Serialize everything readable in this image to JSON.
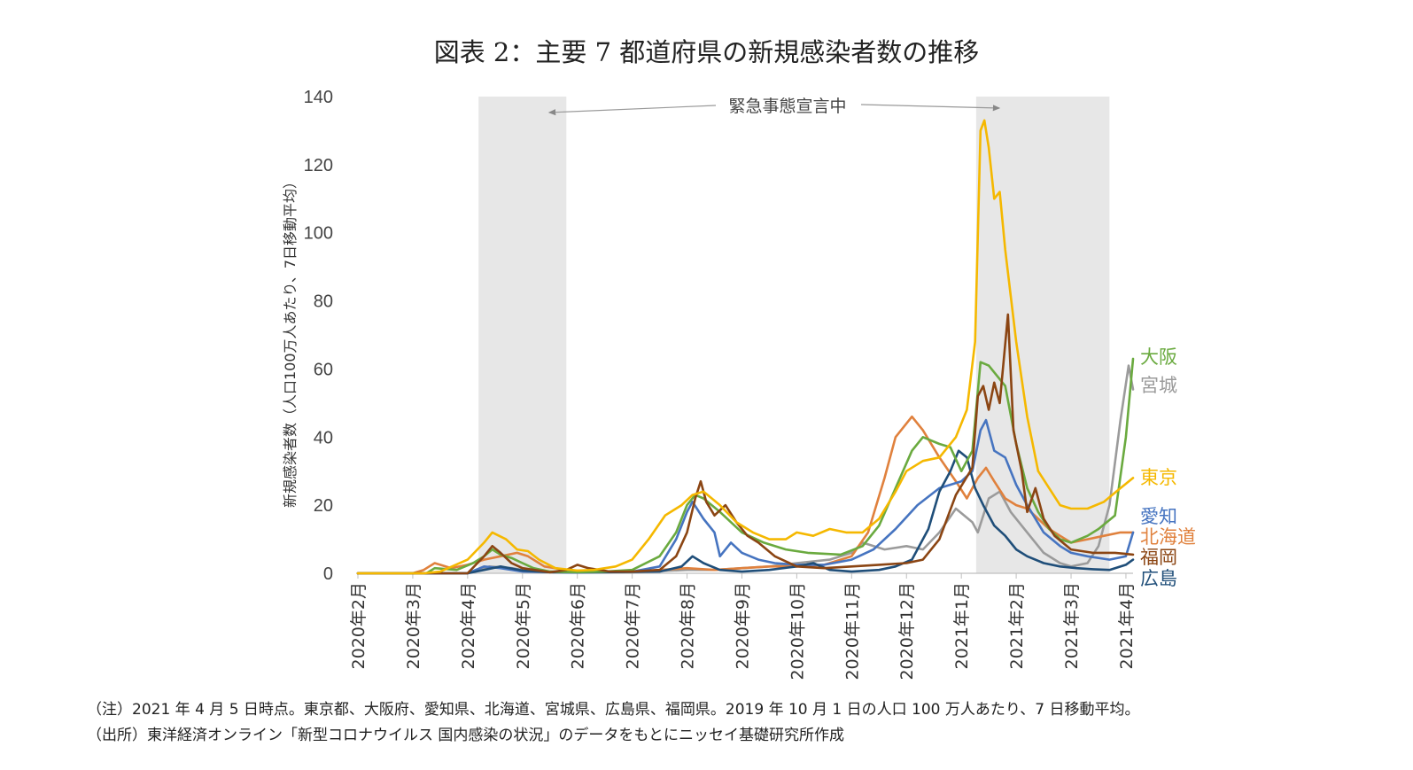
{
  "chart_data": {
    "type": "line",
    "title": "図表 2：主要 7 都道府県の新規感染者数の推移",
    "xlabel": "",
    "ylabel": "新規感染者数（人口100万人あたり、7日移動平均）",
    "ylim": [
      0,
      140
    ],
    "yticks": [
      0,
      20,
      40,
      60,
      80,
      100,
      120,
      140
    ],
    "x_unit": "months since 2020-02-01",
    "xlim": [
      0,
      14.13
    ],
    "categories": [
      "2020年2月",
      "2020年3月",
      "2020年4月",
      "2020年5月",
      "2020年6月",
      "2020年7月",
      "2020年8月",
      "2020年9月",
      "2020年10月",
      "2020年11月",
      "2020年12月",
      "2021年1月",
      "2021年2月",
      "2021年3月",
      "2021年4月"
    ],
    "shaded_periods": [
      {
        "start": 2.2,
        "end": 3.8
      },
      {
        "start": 11.27,
        "end": 13.7
      }
    ],
    "annotation": "緊急事態宣言中",
    "series": [
      {
        "name": "大阪",
        "color": "#6aaa3f",
        "points": [
          [
            0,
            0
          ],
          [
            1.25,
            0
          ],
          [
            1.4,
            1.5
          ],
          [
            1.8,
            1
          ],
          [
            2.1,
            3
          ],
          [
            2.3,
            5
          ],
          [
            2.45,
            7
          ],
          [
            2.6,
            5.5
          ],
          [
            2.8,
            4.5
          ],
          [
            3.0,
            3
          ],
          [
            3.2,
            1.5
          ],
          [
            3.5,
            0.5
          ],
          [
            4.0,
            0.3
          ],
          [
            4.5,
            0.5
          ],
          [
            5.0,
            1
          ],
          [
            5.5,
            5
          ],
          [
            5.8,
            12
          ],
          [
            6.0,
            20
          ],
          [
            6.15,
            23
          ],
          [
            6.3,
            22
          ],
          [
            6.6,
            18
          ],
          [
            7.0,
            12
          ],
          [
            7.4,
            9
          ],
          [
            7.8,
            7
          ],
          [
            8.2,
            6
          ],
          [
            8.8,
            5.5
          ],
          [
            9.2,
            8
          ],
          [
            9.5,
            14
          ],
          [
            9.8,
            25
          ],
          [
            10.1,
            36
          ],
          [
            10.3,
            40
          ],
          [
            10.6,
            38
          ],
          [
            10.8,
            37
          ],
          [
            11.0,
            30
          ],
          [
            11.2,
            36
          ],
          [
            11.35,
            62
          ],
          [
            11.5,
            61
          ],
          [
            11.65,
            58
          ],
          [
            11.8,
            55
          ],
          [
            12.0,
            38
          ],
          [
            12.2,
            25
          ],
          [
            12.4,
            18
          ],
          [
            12.6,
            13
          ],
          [
            12.8,
            10
          ],
          [
            13.0,
            9
          ],
          [
            13.3,
            11
          ],
          [
            13.5,
            13
          ],
          [
            13.8,
            17
          ],
          [
            14.0,
            40
          ],
          [
            14.13,
            63
          ]
        ]
      },
      {
        "name": "宮城",
        "color": "#9b9b9b",
        "points": [
          [
            0,
            0
          ],
          [
            2.0,
            0
          ],
          [
            2.4,
            2
          ],
          [
            2.8,
            1.5
          ],
          [
            3.2,
            0.5
          ],
          [
            4.0,
            0.3
          ],
          [
            5.0,
            0.3
          ],
          [
            6.0,
            1
          ],
          [
            6.5,
            1
          ],
          [
            7.0,
            1.5
          ],
          [
            7.5,
            2
          ],
          [
            8.0,
            3
          ],
          [
            8.6,
            4
          ],
          [
            9.0,
            6
          ],
          [
            9.2,
            9
          ],
          [
            9.6,
            7
          ],
          [
            10.0,
            8
          ],
          [
            10.3,
            7
          ],
          [
            10.6,
            12
          ],
          [
            10.9,
            19
          ],
          [
            11.2,
            15
          ],
          [
            11.3,
            12
          ],
          [
            11.5,
            22
          ],
          [
            11.7,
            24
          ],
          [
            11.9,
            18
          ],
          [
            12.2,
            12
          ],
          [
            12.5,
            6
          ],
          [
            12.8,
            3
          ],
          [
            13.0,
            2
          ],
          [
            13.3,
            3
          ],
          [
            13.5,
            8
          ],
          [
            13.7,
            20
          ],
          [
            13.9,
            45
          ],
          [
            14.05,
            61
          ],
          [
            14.13,
            54
          ]
        ]
      },
      {
        "name": "東京",
        "color": "#f5b800",
        "points": [
          [
            0,
            0
          ],
          [
            1.2,
            0
          ],
          [
            1.5,
            0.5
          ],
          [
            2.0,
            4
          ],
          [
            2.3,
            9
          ],
          [
            2.45,
            12
          ],
          [
            2.7,
            10
          ],
          [
            2.9,
            7
          ],
          [
            3.1,
            6.5
          ],
          [
            3.3,
            4
          ],
          [
            3.6,
            1.5
          ],
          [
            4.0,
            0.8
          ],
          [
            4.3,
            1
          ],
          [
            4.7,
            2
          ],
          [
            5.0,
            4
          ],
          [
            5.3,
            10
          ],
          [
            5.6,
            17
          ],
          [
            5.9,
            20
          ],
          [
            6.1,
            23
          ],
          [
            6.3,
            24
          ],
          [
            6.6,
            20
          ],
          [
            6.9,
            15
          ],
          [
            7.2,
            12
          ],
          [
            7.5,
            10
          ],
          [
            7.8,
            10
          ],
          [
            8.0,
            12
          ],
          [
            8.3,
            11
          ],
          [
            8.6,
            13
          ],
          [
            8.9,
            12
          ],
          [
            9.2,
            12
          ],
          [
            9.5,
            16
          ],
          [
            9.8,
            24
          ],
          [
            10.0,
            30
          ],
          [
            10.3,
            33
          ],
          [
            10.6,
            34
          ],
          [
            10.9,
            40
          ],
          [
            11.1,
            48
          ],
          [
            11.25,
            68
          ],
          [
            11.35,
            130
          ],
          [
            11.42,
            133
          ],
          [
            11.5,
            125
          ],
          [
            11.6,
            110
          ],
          [
            11.7,
            112
          ],
          [
            11.8,
            95
          ],
          [
            12.0,
            68
          ],
          [
            12.2,
            46
          ],
          [
            12.4,
            30
          ],
          [
            12.6,
            25
          ],
          [
            12.8,
            20
          ],
          [
            13.0,
            19
          ],
          [
            13.3,
            19
          ],
          [
            13.6,
            21
          ],
          [
            13.9,
            25
          ],
          [
            14.13,
            28
          ]
        ]
      },
      {
        "name": "愛知",
        "color": "#4674c0",
        "points": [
          [
            0,
            0
          ],
          [
            2.0,
            0
          ],
          [
            2.3,
            2
          ],
          [
            2.6,
            1.5
          ],
          [
            3.0,
            0.5
          ],
          [
            4.0,
            0.2
          ],
          [
            5.0,
            0.5
          ],
          [
            5.5,
            2
          ],
          [
            5.8,
            10
          ],
          [
            6.0,
            18
          ],
          [
            6.1,
            21
          ],
          [
            6.3,
            16
          ],
          [
            6.5,
            12
          ],
          [
            6.6,
            5
          ],
          [
            6.8,
            9
          ],
          [
            7.0,
            6
          ],
          [
            7.3,
            4
          ],
          [
            7.6,
            3
          ],
          [
            8.0,
            2.5
          ],
          [
            8.5,
            2.5
          ],
          [
            9.0,
            4
          ],
          [
            9.4,
            7
          ],
          [
            9.8,
            13
          ],
          [
            10.2,
            20
          ],
          [
            10.6,
            25
          ],
          [
            11.0,
            27
          ],
          [
            11.2,
            30
          ],
          [
            11.35,
            42
          ],
          [
            11.45,
            45
          ],
          [
            11.6,
            36
          ],
          [
            11.8,
            34
          ],
          [
            12.0,
            26
          ],
          [
            12.2,
            20
          ],
          [
            12.5,
            12
          ],
          [
            12.8,
            8
          ],
          [
            13.0,
            6
          ],
          [
            13.3,
            5
          ],
          [
            13.7,
            4
          ],
          [
            14.0,
            5
          ],
          [
            14.13,
            12
          ]
        ]
      },
      {
        "name": "北海道",
        "color": "#e0813d",
        "points": [
          [
            0,
            0
          ],
          [
            1.0,
            0
          ],
          [
            1.2,
            1
          ],
          [
            1.3,
            2
          ],
          [
            1.4,
            3
          ],
          [
            1.5,
            2.5
          ],
          [
            1.7,
            1.5
          ],
          [
            2.0,
            2.5
          ],
          [
            2.3,
            4
          ],
          [
            2.6,
            5
          ],
          [
            2.9,
            6
          ],
          [
            3.1,
            5
          ],
          [
            3.4,
            2
          ],
          [
            3.8,
            1
          ],
          [
            4.2,
            0.5
          ],
          [
            5.0,
            0.5
          ],
          [
            5.5,
            1
          ],
          [
            6.0,
            1.5
          ],
          [
            6.5,
            1
          ],
          [
            7.0,
            1.5
          ],
          [
            7.5,
            2
          ],
          [
            8.0,
            2
          ],
          [
            8.5,
            2.5
          ],
          [
            9.0,
            5
          ],
          [
            9.3,
            12
          ],
          [
            9.6,
            28
          ],
          [
            9.8,
            40
          ],
          [
            10.0,
            44
          ],
          [
            10.1,
            46
          ],
          [
            10.3,
            42
          ],
          [
            10.6,
            34
          ],
          [
            10.9,
            27
          ],
          [
            11.1,
            22
          ],
          [
            11.3,
            28
          ],
          [
            11.45,
            31
          ],
          [
            11.6,
            27
          ],
          [
            11.8,
            22
          ],
          [
            12.0,
            20
          ],
          [
            12.2,
            19
          ],
          [
            12.4,
            16
          ],
          [
            12.6,
            13
          ],
          [
            12.8,
            11
          ],
          [
            13.0,
            9
          ],
          [
            13.3,
            10
          ],
          [
            13.6,
            11
          ],
          [
            13.9,
            12
          ],
          [
            14.13,
            12
          ]
        ]
      },
      {
        "name": "福岡",
        "color": "#8b4513",
        "points": [
          [
            0,
            0
          ],
          [
            2.0,
            0
          ],
          [
            2.3,
            5
          ],
          [
            2.45,
            8
          ],
          [
            2.6,
            6
          ],
          [
            2.8,
            3
          ],
          [
            3.0,
            1.5
          ],
          [
            3.5,
            0.3
          ],
          [
            3.8,
            1
          ],
          [
            4.0,
            2.5
          ],
          [
            4.2,
            1.5
          ],
          [
            4.6,
            0.5
          ],
          [
            5.0,
            0.5
          ],
          [
            5.5,
            1
          ],
          [
            5.8,
            5
          ],
          [
            6.0,
            12
          ],
          [
            6.15,
            22
          ],
          [
            6.25,
            27
          ],
          [
            6.35,
            21
          ],
          [
            6.5,
            17
          ],
          [
            6.7,
            20
          ],
          [
            6.9,
            15
          ],
          [
            7.1,
            11
          ],
          [
            7.3,
            9
          ],
          [
            7.6,
            5
          ],
          [
            8.0,
            2
          ],
          [
            8.5,
            1.5
          ],
          [
            9.0,
            2
          ],
          [
            9.5,
            2.5
          ],
          [
            10.0,
            3
          ],
          [
            10.3,
            4
          ],
          [
            10.6,
            10
          ],
          [
            10.9,
            23
          ],
          [
            11.2,
            31
          ],
          [
            11.3,
            52
          ],
          [
            11.4,
            55
          ],
          [
            11.5,
            48
          ],
          [
            11.6,
            56
          ],
          [
            11.7,
            50
          ],
          [
            11.85,
            76
          ],
          [
            11.95,
            42
          ],
          [
            12.1,
            30
          ],
          [
            12.2,
            18
          ],
          [
            12.35,
            25
          ],
          [
            12.5,
            16
          ],
          [
            12.7,
            11
          ],
          [
            13.0,
            7
          ],
          [
            13.4,
            6
          ],
          [
            13.8,
            6
          ],
          [
            14.13,
            5.5
          ]
        ]
      },
      {
        "name": "広島",
        "color": "#1f4e79",
        "points": [
          [
            0,
            0
          ],
          [
            2.0,
            0
          ],
          [
            2.3,
            1
          ],
          [
            2.6,
            2
          ],
          [
            3.0,
            0.8
          ],
          [
            3.5,
            0.3
          ],
          [
            4.5,
            0.3
          ],
          [
            5.5,
            0.5
          ],
          [
            5.9,
            2
          ],
          [
            6.1,
            5
          ],
          [
            6.3,
            3
          ],
          [
            6.6,
            1
          ],
          [
            7.0,
            0.5
          ],
          [
            7.5,
            1
          ],
          [
            8.0,
            2
          ],
          [
            8.3,
            3
          ],
          [
            8.6,
            1
          ],
          [
            9.0,
            0.5
          ],
          [
            9.5,
            1
          ],
          [
            9.8,
            2
          ],
          [
            10.1,
            4
          ],
          [
            10.4,
            13
          ],
          [
            10.6,
            24
          ],
          [
            10.8,
            30
          ],
          [
            10.95,
            36
          ],
          [
            11.1,
            34
          ],
          [
            11.25,
            25
          ],
          [
            11.4,
            20
          ],
          [
            11.6,
            14
          ],
          [
            11.8,
            11
          ],
          [
            12.0,
            7
          ],
          [
            12.2,
            5
          ],
          [
            12.5,
            3
          ],
          [
            12.8,
            2
          ],
          [
            13.1,
            1.5
          ],
          [
            13.4,
            1.2
          ],
          [
            13.7,
            1
          ],
          [
            14.0,
            2.5
          ],
          [
            14.13,
            4
          ]
        ]
      }
    ]
  },
  "notes": [
    "（注）2021 年 4 月 5 日時点。東京都、大阪府、愛知県、北海道、宮城県、広島県、福岡県。2019 年 10 月 1 日の人口 100 万人あたり、7 日移動平均。",
    "（出所）東洋経済オンライン「新型コロナウイルス 国内感染の状況」のデータをもとにニッセイ基礎研究所作成"
  ]
}
